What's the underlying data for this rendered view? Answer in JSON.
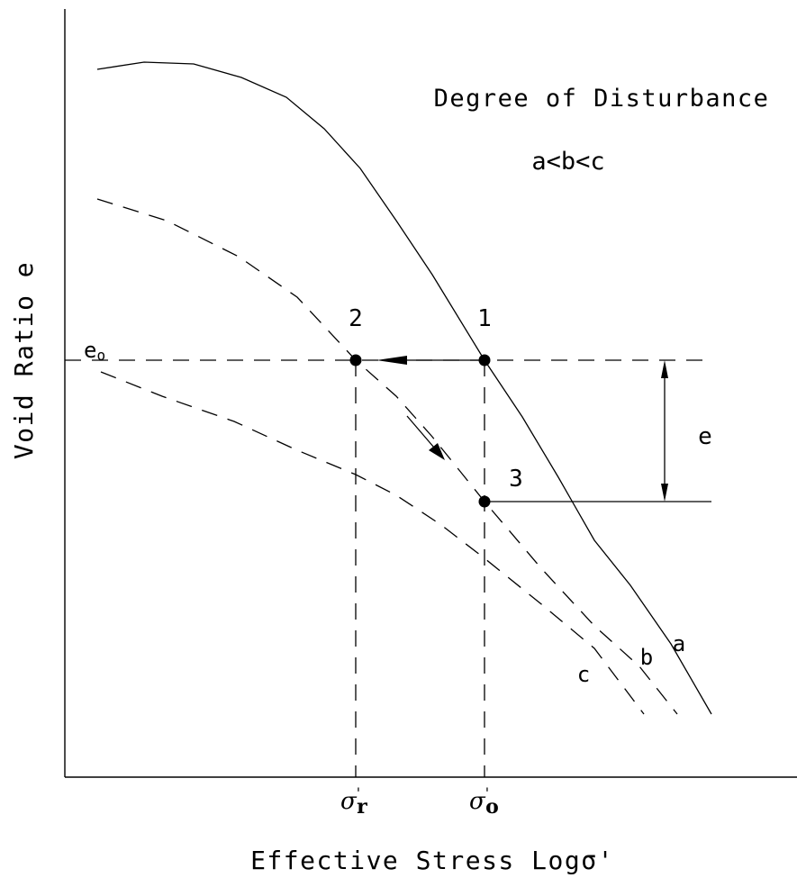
{
  "title": "Degree of Disturbance",
  "subtitle": "a<b<c",
  "y_axis_label": "Void Ratio e",
  "x_axis_label": "Effective Stress Logσ'",
  "e0_label": "e",
  "e0_sub": "o",
  "delta_e_label": "e",
  "points": [
    "1",
    "2",
    "3"
  ],
  "curve_labels": {
    "a": "a",
    "b": "b",
    "c": "c"
  },
  "x_ticks": {
    "sigma_r": {
      "main": "σ",
      "prime": "'",
      "sub": "r"
    },
    "sigma_o": {
      "main": "σ",
      "prime": "'",
      "sub": "o"
    }
  },
  "colors": {
    "ink": "#000000",
    "background": "#ffffff"
  }
}
